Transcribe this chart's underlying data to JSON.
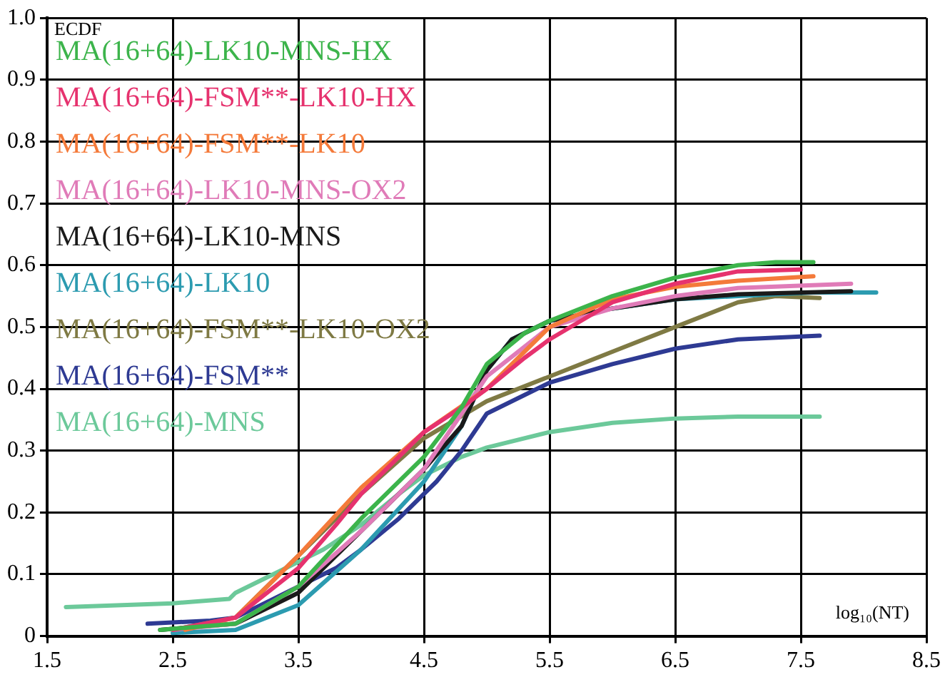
{
  "chart_data": {
    "type": "line",
    "xlabel": "log₁₀(NT)",
    "ylabel": "ECDF",
    "xlim": [
      1.5,
      8.5
    ],
    "xticks": [
      1.5,
      2.5,
      3.5,
      4.5,
      5.5,
      6.5,
      7.5,
      8.5
    ],
    "ylim": [
      0,
      1
    ],
    "yticks": [
      0,
      0.1,
      0.2,
      0.3,
      0.4,
      0.5,
      0.6,
      0.7,
      0.8,
      0.9,
      {
        "value": 1,
        "label": "1.0"
      }
    ],
    "grid": true,
    "legend": "top left",
    "marker": "none",
    "line_style": "solid",
    "series": [
      {
        "name": "MA(16+64)-LK10-MNS-HX",
        "color": "#3cb44b",
        "x": [
          2.4,
          3.0,
          3.5,
          4.0,
          4.5,
          4.8,
          5.0,
          5.3,
          5.5,
          6.0,
          6.5,
          7.0,
          7.3,
          7.6
        ],
        "values": [
          0.01,
          0.02,
          0.08,
          0.19,
          0.29,
          0.37,
          0.44,
          0.49,
          0.51,
          0.55,
          0.58,
          0.6,
          0.605,
          0.605
        ]
      },
      {
        "name": "MA(16+64)-FSM**-LK10-HX",
        "color": "#e6326e",
        "x": [
          2.5,
          3.0,
          3.5,
          3.8,
          4.0,
          4.5,
          4.8,
          5.0,
          5.3,
          5.5,
          6.0,
          6.5,
          7.0,
          7.5
        ],
        "values": [
          0.01,
          0.03,
          0.11,
          0.18,
          0.23,
          0.33,
          0.37,
          0.4,
          0.45,
          0.48,
          0.54,
          0.57,
          0.59,
          0.593
        ]
      },
      {
        "name": "MA(16+64)-FSM**-LK10",
        "color": "#f47a3a",
        "x": [
          2.6,
          3.0,
          3.5,
          4.0,
          4.5,
          5.0,
          5.5,
          6.0,
          6.5,
          7.0,
          7.6
        ],
        "values": [
          0.01,
          0.03,
          0.13,
          0.24,
          0.33,
          0.4,
          0.5,
          0.545,
          0.565,
          0.575,
          0.582
        ]
      },
      {
        "name": "MA(16+64)-LK10-MNS-OX2",
        "color": "#e07bb8",
        "x": [
          2.5,
          3.0,
          3.5,
          4.0,
          4.5,
          5.0,
          5.5,
          6.0,
          6.5,
          7.0,
          7.9
        ],
        "values": [
          0.01,
          0.02,
          0.08,
          0.17,
          0.27,
          0.42,
          0.5,
          0.53,
          0.55,
          0.563,
          0.57
        ]
      },
      {
        "name": "MA(16+64)-LK10-MNS",
        "color": "#1a1a1a",
        "x": [
          2.4,
          3.0,
          3.5,
          4.0,
          4.5,
          4.8,
          5.0,
          5.2,
          5.5,
          6.0,
          6.5,
          7.0,
          7.9
        ],
        "values": [
          0.01,
          0.02,
          0.07,
          0.17,
          0.27,
          0.34,
          0.43,
          0.48,
          0.51,
          0.53,
          0.545,
          0.553,
          0.558
        ]
      },
      {
        "name": "MA(16+64)-LK10",
        "color": "#2c9bb0",
        "x": [
          2.5,
          3.0,
          3.5,
          4.0,
          4.5,
          4.8,
          5.0,
          5.2,
          5.5,
          6.0,
          6.5,
          7.0,
          7.6,
          8.1
        ],
        "values": [
          0.005,
          0.01,
          0.05,
          0.14,
          0.25,
          0.34,
          0.43,
          0.48,
          0.51,
          0.53,
          0.545,
          0.55,
          0.556,
          0.556
        ]
      },
      {
        "name": "MA(16+64)-FSM**-LK10-OX2",
        "color": "#7f7a44",
        "x": [
          2.5,
          3.0,
          3.5,
          4.0,
          4.5,
          5.0,
          5.5,
          6.0,
          6.5,
          7.0,
          7.3,
          7.65
        ],
        "values": [
          0.01,
          0.03,
          0.13,
          0.23,
          0.32,
          0.38,
          0.42,
          0.46,
          0.5,
          0.54,
          0.55,
          0.547
        ]
      },
      {
        "name": "MA(16+64)-FSM**",
        "color": "#2e3a93",
        "x": [
          2.3,
          2.8,
          3.0,
          3.3,
          3.5,
          3.8,
          4.0,
          4.3,
          4.6,
          4.8,
          5.0,
          5.3,
          5.5,
          6.0,
          6.5,
          7.0,
          7.65
        ],
        "values": [
          0.02,
          0.025,
          0.03,
          0.06,
          0.08,
          0.11,
          0.14,
          0.19,
          0.25,
          0.3,
          0.36,
          0.39,
          0.41,
          0.44,
          0.465,
          0.48,
          0.486
        ]
      },
      {
        "name": "MA(16+64)-MNS",
        "color": "#6cc99a",
        "x": [
          1.65,
          2.5,
          2.95,
          3.0,
          3.3,
          3.5,
          3.7,
          4.0,
          4.3,
          4.5,
          4.8,
          5.0,
          5.5,
          6.0,
          6.5,
          7.0,
          7.65
        ],
        "values": [
          0.047,
          0.053,
          0.06,
          0.07,
          0.1,
          0.12,
          0.14,
          0.18,
          0.23,
          0.26,
          0.29,
          0.305,
          0.33,
          0.345,
          0.352,
          0.355,
          0.355
        ]
      }
    ]
  }
}
